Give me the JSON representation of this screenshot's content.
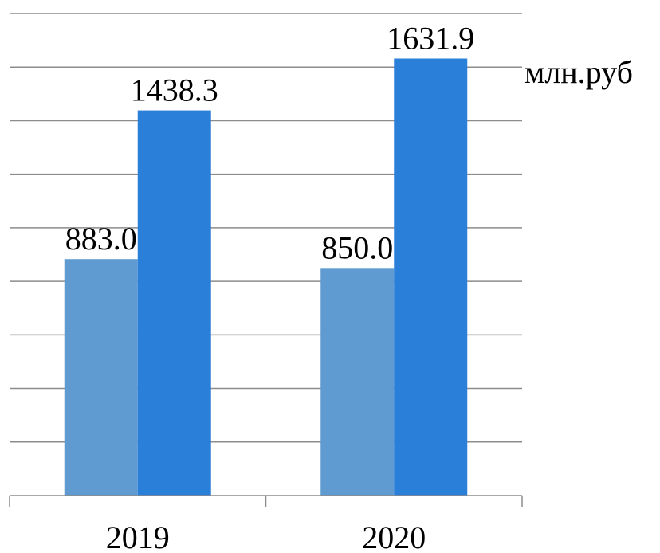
{
  "chart_data": {
    "type": "bar",
    "categories": [
      "2019",
      "2020"
    ],
    "series": [
      {
        "values": [
          883.0,
          850.0
        ]
      },
      {
        "values": [
          1438.3,
          1631.9
        ]
      }
    ],
    "data_labels": [
      [
        "883.0",
        "850.0"
      ],
      [
        "1438.3",
        "1631.9"
      ]
    ],
    "unit_label": "млн.руб",
    "ylim": [
      0,
      1800
    ],
    "y_gridline_step": 200,
    "grid": true,
    "legend": "none"
  },
  "colors": {
    "series_1": "#5f9bd0",
    "series_2": "#2a7fd8",
    "grid": "#8c8c8c"
  }
}
